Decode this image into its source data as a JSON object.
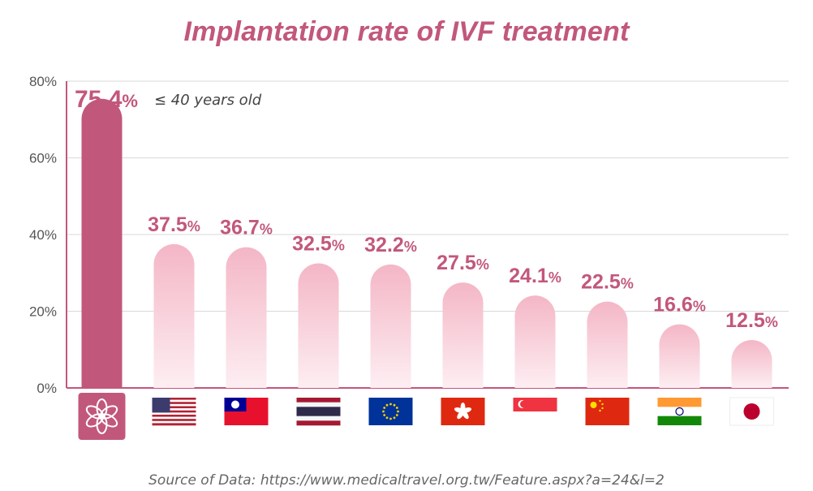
{
  "title": "Implantation rate of IVF treatment",
  "source": "Source of Data: https://www.medicaltravel.org.tw/Feature.aspx?a=24&l=2",
  "annotation": "≤ 40 years old",
  "colors": {
    "highlight": "#c2577c",
    "bar_top": "#f4b6c6",
    "bar_bottom": "#fdeef2",
    "label": "#c2577c",
    "grid": "#d9d9d9",
    "axis_text": "#555555"
  },
  "chart_data": {
    "type": "bar",
    "categories": [
      "clinic-logo",
      "USA",
      "Taiwan",
      "Thailand",
      "European Union",
      "Hong Kong",
      "Singapore",
      "China",
      "India",
      "Japan"
    ],
    "values": [
      75.4,
      37.5,
      36.7,
      32.5,
      32.2,
      27.5,
      24.1,
      22.5,
      16.6,
      12.5
    ],
    "value_labels": [
      "75.4",
      "37.5",
      "36.7",
      "32.5",
      "32.2",
      "27.5",
      "24.1",
      "22.5",
      "16.6",
      "12.5"
    ],
    "unit": "%",
    "yticks": [
      "0%",
      "20%",
      "40%",
      "60%",
      "80%"
    ],
    "ylim": [
      0,
      80
    ],
    "grid": true,
    "highlight_index": 0,
    "icons": [
      "lotus-logo-icon",
      "flag-usa-icon",
      "flag-taiwan-icon",
      "flag-thailand-icon",
      "flag-eu-icon",
      "flag-hong-kong-icon",
      "flag-singapore-icon",
      "flag-china-icon",
      "flag-india-icon",
      "flag-japan-icon"
    ]
  }
}
